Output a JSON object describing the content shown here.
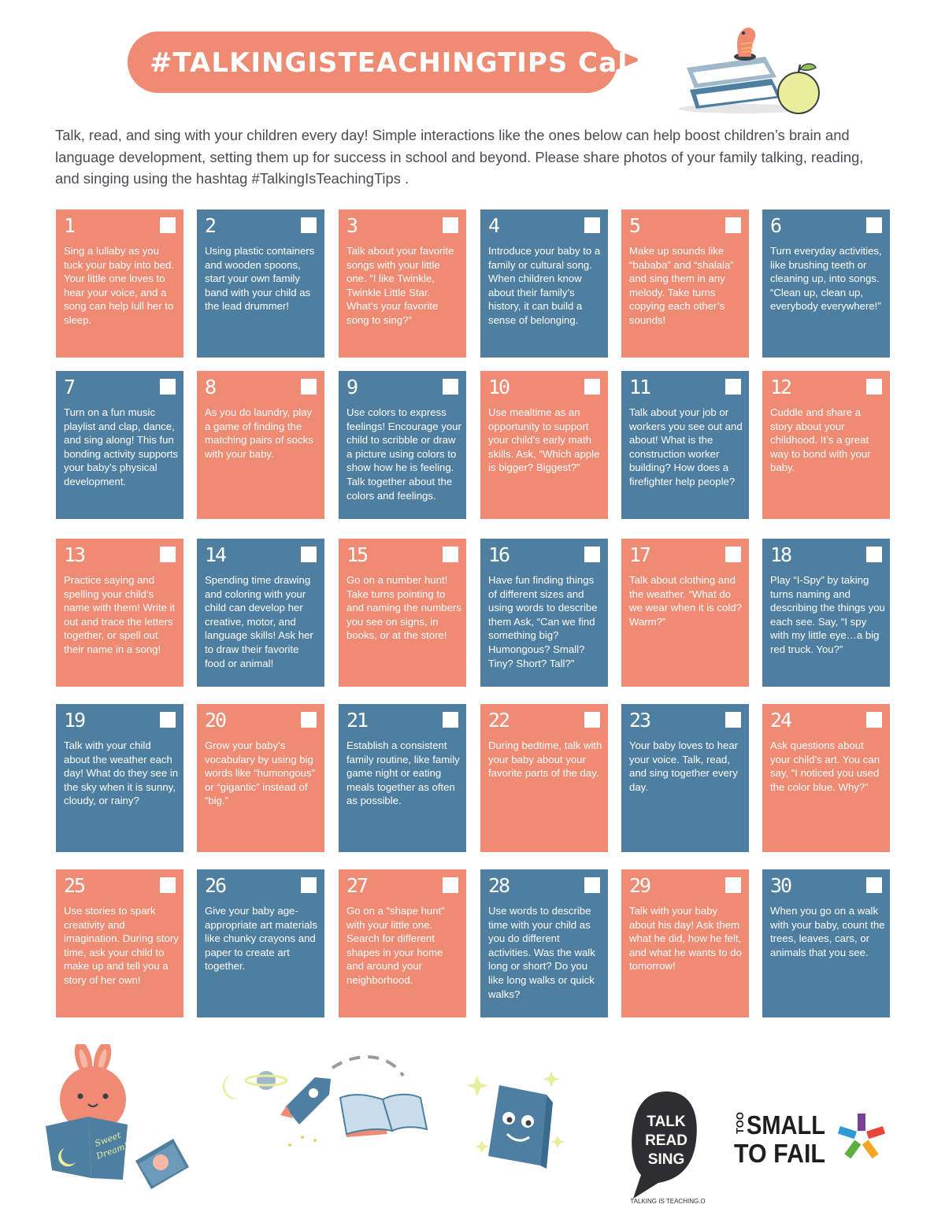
{
  "header": {
    "title": "#TALKINGISTEACHINGTIPS CaLENdaR"
  },
  "intro": "Talk, read, and sing with your children every day! Simple interactions like the ones below can help boost children’s brain and language development, setting them up for success in school and beyond. Please share photos of your family talking, reading, and singing using the hashtag #TalkingIsTeachingTips .",
  "colors": {
    "salmon": "#ef8a73",
    "blue": "#4e7fa0",
    "text": "#4a4c52"
  },
  "days": [
    {
      "num": "1",
      "color": "salmon",
      "text": "Sing a lullaby as you tuck your baby into bed. Your little one loves to hear your voice, and a song can help lull her to sleep."
    },
    {
      "num": "2",
      "color": "blue",
      "text": "Using plastic containers and wooden spoons, start your own family band with your child as the lead drummer!"
    },
    {
      "num": "3",
      "color": "salmon",
      "text": "Talk about your favorite songs with your little one. “I like Twinkle, Twinkle Little Star. What’s your favorite song to sing?”"
    },
    {
      "num": "4",
      "color": "blue",
      "text": "Introduce your baby to a family or cultural song. When children know about their family’s history, it can build a sense of belonging."
    },
    {
      "num": "5",
      "color": "salmon",
      "text": "Make up sounds like “bababa” and “shalala” and sing them in any melody. Take turns copying each other’s sounds!"
    },
    {
      "num": "6",
      "color": "blue",
      "text": "Turn everyday activities, like brushing teeth or cleaning up, into songs. “Clean up, clean up, everybody everywhere!”"
    },
    {
      "num": "7",
      "color": "blue",
      "text": "Turn on a fun music playlist and clap, dance, and sing along! This fun bonding activity supports your baby’s physical development."
    },
    {
      "num": "8",
      "color": "salmon",
      "text": "As you do laundry, play a game of finding the matching pairs of socks with your baby."
    },
    {
      "num": "9",
      "color": "blue",
      "text": "Use colors to express feelings! Encourage your child to scribble or draw a picture using colors to show how he is feeling. Talk together about the colors and feelings."
    },
    {
      "num": "10",
      "color": "salmon",
      "text": "Use mealtime as an opportunity to support your child’s early math skills. Ask, “Which apple is bigger? Biggest?”"
    },
    {
      "num": "11",
      "color": "blue",
      "text": "Talk about your job or workers you see out and about! What is the construction worker building? How does a firefighter help people?"
    },
    {
      "num": "12",
      "color": "salmon",
      "text": "Cuddle and share a story about your childhood. It’s a great way to bond with your baby."
    },
    {
      "num": "13",
      "color": "salmon",
      "text": "Practice saying and spelling your child’s name with them! Write it out and trace the letters together, or spell out their name in a song!"
    },
    {
      "num": "14",
      "color": "blue",
      "text": "Spending time drawing and coloring with your child can develop her creative, motor, and language skills! Ask her to draw their favorite food or animal!"
    },
    {
      "num": "15",
      "color": "salmon",
      "text": "Go on a number hunt! Take turns pointing to and naming the numbers you see on signs, in books, or at the store!"
    },
    {
      "num": "16",
      "color": "blue",
      "text": "Have fun finding things of different sizes and using words to describe them Ask, “Can we find something big? Humongous? Small? Tiny? Short? Tall?”"
    },
    {
      "num": "17",
      "color": "salmon",
      "text": "Talk about clothing and the weather. “What do we wear when it is cold? Warm?”"
    },
    {
      "num": "18",
      "color": "blue",
      "text": "Play “I-Spy” by taking turns naming and describing the things you each see. Say, “I spy with my little eye…a big red truck. You?”"
    },
    {
      "num": "19",
      "color": "blue",
      "text": "Talk with your child about the weather each day! What do they see in the sky when it is sunny, cloudy, or rainy?"
    },
    {
      "num": "20",
      "color": "salmon",
      "text": "Grow your baby’s vocabulary by using big words like “humongous” or “gigantic” instead of “big.”"
    },
    {
      "num": "21",
      "color": "blue",
      "text": "Establish a consistent family routine, like family game night or eating meals together as often as possible."
    },
    {
      "num": "22",
      "color": "salmon",
      "text": "During bedtime, talk with your baby about your favorite parts of the day."
    },
    {
      "num": "23",
      "color": "blue",
      "text": "Your baby loves to hear your voice. Talk, read, and sing together every day."
    },
    {
      "num": "24",
      "color": "salmon",
      "text": "Ask questions about your child’s art. You can say, “I noticed you used the color blue. Why?”"
    },
    {
      "num": "25",
      "color": "salmon",
      "text": "Use stories to spark creativity and imagination. During story time, ask your child to make up and tell you a story of her own!"
    },
    {
      "num": "26",
      "color": "blue",
      "text": "Give your baby age-appropriate art materials like chunky crayons and paper to create art together."
    },
    {
      "num": "27",
      "color": "salmon",
      "text": "Go on a “shape hunt” with your little one. Search for different shapes in your home and around your neighborhood."
    },
    {
      "num": "28",
      "color": "blue",
      "text": "Use words to describe time with your child as you do different activities. Was the walk long or short? Do you like long walks or quick walks?"
    },
    {
      "num": "29",
      "color": "salmon",
      "text": "Talk with your baby about his day! Ask them what he did, how he felt, and what he wants to do tomorrow!"
    },
    {
      "num": "30",
      "color": "blue",
      "text": "When you go on a walk with your baby, count the trees, leaves, cars, or animals that you see."
    }
  ],
  "logos": {
    "trs_lines": [
      "TALK",
      "READ",
      "SING"
    ],
    "trs_tagline": "TALKING IS TEACHING.ORG",
    "tstf_too": "TOO",
    "tstf_small": "SMALL",
    "tstf_tofail": "TO FAIL"
  }
}
